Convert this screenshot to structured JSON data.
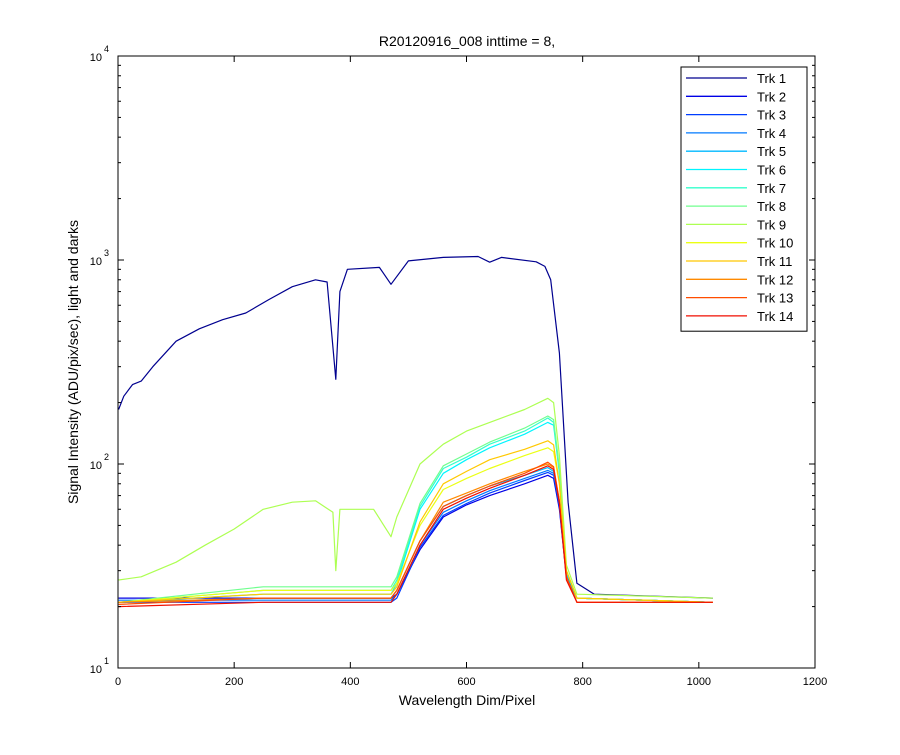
{
  "chart_data": {
    "type": "line",
    "title": "R20120916_008 inttime = 8,",
    "xlabel": "Wavelength Dim/Pixel",
    "ylabel": "Signal Intensity (ADU/pix/sec), light and darks",
    "xlim": [
      0,
      1200
    ],
    "ylim": [
      10,
      10000
    ],
    "yscale": "log",
    "x_ticks": [
      "0",
      "200",
      "400",
      "600",
      "800",
      "1000",
      "1200"
    ],
    "y_ticks": [
      {
        "base": "10",
        "exp": "1",
        "value": 10
      },
      {
        "base": "10",
        "exp": "2",
        "value": 100
      },
      {
        "base": "10",
        "exp": "3",
        "value": 1000
      },
      {
        "base": "10",
        "exp": "4",
        "value": 10000
      }
    ],
    "grid": false,
    "legend_position": "top-right",
    "series": [
      {
        "name": "Trk 1",
        "color": "#00008f",
        "points": [
          [
            1,
            185
          ],
          [
            10,
            215
          ],
          [
            25,
            245
          ],
          [
            40,
            255
          ],
          [
            60,
            300
          ],
          [
            100,
            400
          ],
          [
            140,
            460
          ],
          [
            180,
            510
          ],
          [
            220,
            550
          ],
          [
            260,
            640
          ],
          [
            300,
            740
          ],
          [
            340,
            800
          ],
          [
            360,
            780
          ],
          [
            375,
            260
          ],
          [
            382,
            700
          ],
          [
            395,
            900
          ],
          [
            450,
            920
          ],
          [
            470,
            760
          ],
          [
            500,
            990
          ],
          [
            560,
            1030
          ],
          [
            620,
            1040
          ],
          [
            640,
            975
          ],
          [
            660,
            1030
          ],
          [
            720,
            980
          ],
          [
            735,
            930
          ],
          [
            745,
            800
          ],
          [
            760,
            350
          ],
          [
            775,
            65
          ],
          [
            790,
            26
          ],
          [
            820,
            23
          ],
          [
            1024,
            22
          ]
        ]
      },
      {
        "name": "Trk 2",
        "color": "#0000e6",
        "points": [
          [
            1,
            22
          ],
          [
            470,
            22
          ],
          [
            480,
            23
          ],
          [
            520,
            38
          ],
          [
            560,
            55
          ],
          [
            600,
            63
          ],
          [
            640,
            70
          ],
          [
            700,
            80
          ],
          [
            740,
            88
          ],
          [
            750,
            85
          ],
          [
            760,
            60
          ],
          [
            772,
            28
          ],
          [
            790,
            22
          ],
          [
            1024,
            21
          ]
        ]
      },
      {
        "name": "Trk 3",
        "color": "#003dff",
        "points": [
          [
            1,
            21
          ],
          [
            470,
            21
          ],
          [
            480,
            22
          ],
          [
            520,
            39
          ],
          [
            560,
            56
          ],
          [
            600,
            64
          ],
          [
            640,
            72
          ],
          [
            700,
            83
          ],
          [
            740,
            91
          ],
          [
            750,
            88
          ],
          [
            760,
            62
          ],
          [
            772,
            28
          ],
          [
            790,
            22
          ],
          [
            1024,
            21
          ]
        ]
      },
      {
        "name": "Trk 4",
        "color": "#007aff",
        "points": [
          [
            1,
            21.5
          ],
          [
            470,
            21.5
          ],
          [
            480,
            23
          ],
          [
            520,
            40
          ],
          [
            560,
            58
          ],
          [
            600,
            66
          ],
          [
            640,
            74
          ],
          [
            700,
            85
          ],
          [
            740,
            93
          ],
          [
            750,
            90
          ],
          [
            760,
            64
          ],
          [
            772,
            29
          ],
          [
            790,
            22
          ],
          [
            1024,
            21
          ]
        ]
      },
      {
        "name": "Trk 5",
        "color": "#00b8ff",
        "points": [
          [
            1,
            21
          ],
          [
            250,
            22
          ],
          [
            470,
            22
          ],
          [
            480,
            24
          ],
          [
            520,
            42
          ],
          [
            560,
            62
          ],
          [
            600,
            70
          ],
          [
            640,
            78
          ],
          [
            700,
            88
          ],
          [
            740,
            96
          ],
          [
            750,
            92
          ],
          [
            760,
            66
          ],
          [
            772,
            29
          ],
          [
            790,
            22
          ],
          [
            1024,
            21
          ]
        ]
      },
      {
        "name": "Trk 6",
        "color": "#00f5ff",
        "points": [
          [
            1,
            21
          ],
          [
            250,
            23
          ],
          [
            470,
            23
          ],
          [
            480,
            26
          ],
          [
            520,
            60
          ],
          [
            560,
            90
          ],
          [
            600,
            105
          ],
          [
            640,
            120
          ],
          [
            700,
            140
          ],
          [
            740,
            160
          ],
          [
            750,
            155
          ],
          [
            760,
            90
          ],
          [
            772,
            30
          ],
          [
            790,
            22
          ],
          [
            1024,
            21
          ]
        ]
      },
      {
        "name": "Trk 7",
        "color": "#33ffcc",
        "points": [
          [
            1,
            21
          ],
          [
            250,
            24
          ],
          [
            470,
            24
          ],
          [
            480,
            27
          ],
          [
            520,
            62
          ],
          [
            560,
            95
          ],
          [
            600,
            108
          ],
          [
            640,
            125
          ],
          [
            700,
            145
          ],
          [
            740,
            168
          ],
          [
            750,
            160
          ],
          [
            760,
            92
          ],
          [
            772,
            30
          ],
          [
            790,
            22
          ],
          [
            1024,
            21
          ]
        ]
      },
      {
        "name": "Trk 8",
        "color": "#70ff8f",
        "points": [
          [
            1,
            21
          ],
          [
            250,
            25
          ],
          [
            470,
            25
          ],
          [
            480,
            28
          ],
          [
            520,
            64
          ],
          [
            560,
            98
          ],
          [
            600,
            112
          ],
          [
            640,
            128
          ],
          [
            700,
            150
          ],
          [
            740,
            172
          ],
          [
            750,
            165
          ],
          [
            760,
            95
          ],
          [
            772,
            30
          ],
          [
            790,
            22
          ],
          [
            1024,
            21
          ]
        ]
      },
      {
        "name": "Trk 9",
        "color": "#adff52",
        "points": [
          [
            1,
            27
          ],
          [
            40,
            28
          ],
          [
            100,
            33
          ],
          [
            150,
            40
          ],
          [
            200,
            48
          ],
          [
            250,
            60
          ],
          [
            300,
            65
          ],
          [
            340,
            66
          ],
          [
            370,
            58
          ],
          [
            375,
            30
          ],
          [
            382,
            60
          ],
          [
            440,
            60
          ],
          [
            470,
            44
          ],
          [
            480,
            55
          ],
          [
            520,
            100
          ],
          [
            560,
            125
          ],
          [
            600,
            145
          ],
          [
            640,
            160
          ],
          [
            700,
            185
          ],
          [
            740,
            210
          ],
          [
            750,
            200
          ],
          [
            760,
            110
          ],
          [
            772,
            32
          ],
          [
            790,
            23
          ],
          [
            1024,
            22
          ]
        ]
      },
      {
        "name": "Trk 10",
        "color": "#ebff14",
        "points": [
          [
            1,
            21
          ],
          [
            250,
            24
          ],
          [
            470,
            24
          ],
          [
            480,
            26
          ],
          [
            520,
            50
          ],
          [
            560,
            75
          ],
          [
            600,
            85
          ],
          [
            640,
            95
          ],
          [
            700,
            110
          ],
          [
            740,
            120
          ],
          [
            750,
            115
          ],
          [
            760,
            80
          ],
          [
            772,
            30
          ],
          [
            790,
            22
          ],
          [
            1024,
            21
          ]
        ]
      },
      {
        "name": "Trk 11",
        "color": "#ffc800",
        "points": [
          [
            1,
            21
          ],
          [
            250,
            23
          ],
          [
            470,
            23
          ],
          [
            480,
            25
          ],
          [
            520,
            52
          ],
          [
            560,
            80
          ],
          [
            600,
            92
          ],
          [
            640,
            105
          ],
          [
            700,
            118
          ],
          [
            740,
            130
          ],
          [
            750,
            124
          ],
          [
            760,
            80
          ],
          [
            772,
            30
          ],
          [
            790,
            22
          ],
          [
            1024,
            21
          ]
        ]
      },
      {
        "name": "Trk 12",
        "color": "#ff8a00",
        "points": [
          [
            1,
            21
          ],
          [
            250,
            22
          ],
          [
            470,
            22
          ],
          [
            480,
            24
          ],
          [
            520,
            42
          ],
          [
            560,
            65
          ],
          [
            600,
            72
          ],
          [
            640,
            80
          ],
          [
            700,
            92
          ],
          [
            740,
            100
          ],
          [
            750,
            96
          ],
          [
            760,
            65
          ],
          [
            772,
            28
          ],
          [
            790,
            21
          ],
          [
            1024,
            21
          ]
        ]
      },
      {
        "name": "Trk 13",
        "color": "#ff4d00",
        "points": [
          [
            1,
            20.5
          ],
          [
            250,
            22
          ],
          [
            470,
            22
          ],
          [
            480,
            24
          ],
          [
            520,
            42
          ],
          [
            560,
            62
          ],
          [
            600,
            70
          ],
          [
            640,
            78
          ],
          [
            700,
            90
          ],
          [
            740,
            102
          ],
          [
            750,
            97
          ],
          [
            760,
            66
          ],
          [
            772,
            28
          ],
          [
            790,
            21
          ],
          [
            1024,
            21
          ]
        ]
      },
      {
        "name": "Trk 14",
        "color": "#f00f00",
        "points": [
          [
            1,
            20
          ],
          [
            250,
            21
          ],
          [
            470,
            21
          ],
          [
            480,
            23
          ],
          [
            520,
            40
          ],
          [
            560,
            60
          ],
          [
            600,
            68
          ],
          [
            640,
            76
          ],
          [
            700,
            88
          ],
          [
            740,
            98
          ],
          [
            750,
            94
          ],
          [
            760,
            64
          ],
          [
            772,
            27
          ],
          [
            790,
            21
          ],
          [
            1024,
            21
          ]
        ]
      }
    ]
  }
}
